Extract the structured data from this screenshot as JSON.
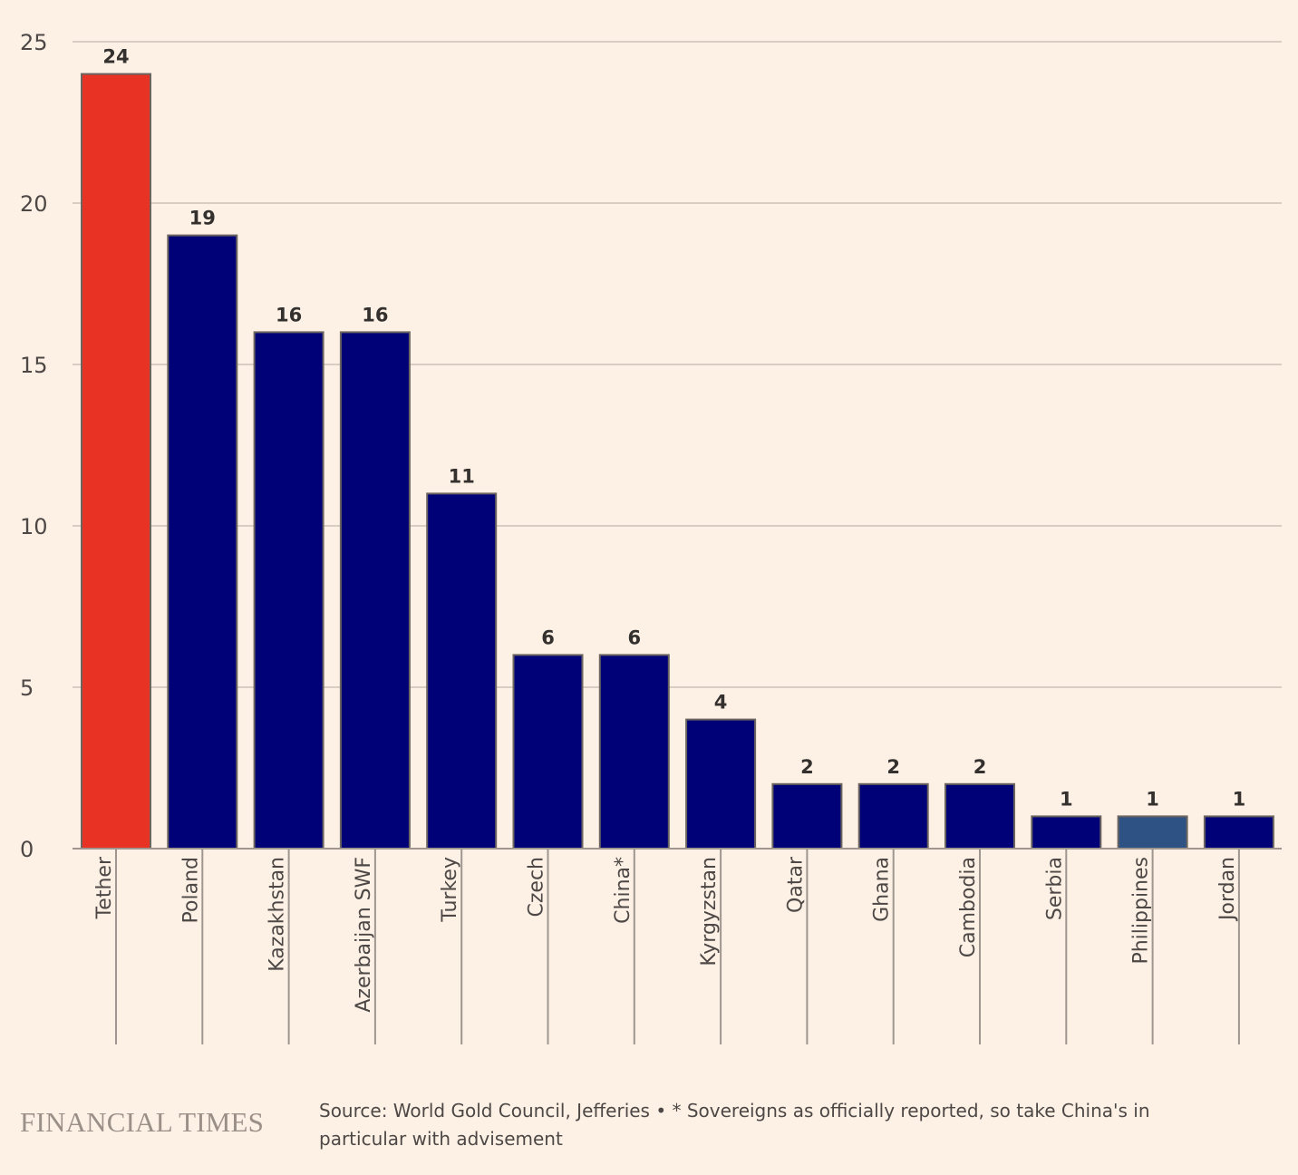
{
  "chart_data": {
    "type": "bar",
    "categories": [
      "Tether",
      "Poland",
      "Kazakhstan",
      "Azerbaijan SWF",
      "Turkey",
      "Czech",
      "China*",
      "Kyrgyzstan",
      "Qatar",
      "Ghana",
      "Cambodia",
      "Serbia",
      "Philippines",
      "Jordan"
    ],
    "values": [
      24,
      19,
      16,
      16,
      11,
      6,
      6,
      4,
      2,
      2,
      2,
      1,
      1,
      1
    ],
    "data_labels": [
      "24",
      "19",
      "16",
      "16",
      "11",
      "6",
      "6",
      "4",
      "2",
      "2",
      "2",
      "1",
      "1",
      "1"
    ],
    "bar_colors": [
      "#e83324",
      "#000077",
      "#000077",
      "#000077",
      "#000077",
      "#000077",
      "#000077",
      "#000077",
      "#000077",
      "#000077",
      "#000077",
      "#000077",
      "#2d5283",
      "#000077"
    ],
    "ylim": [
      0,
      25
    ],
    "yticks": [
      0,
      5,
      10,
      15,
      20,
      25
    ],
    "grid": true,
    "xlabel": "",
    "ylabel": ""
  },
  "footer": {
    "logo": "FINANCIAL TIMES",
    "source": "Source: World Gold Council, Jefferies • * Sovereigns as officially reported, so take China's in particular with advisement"
  },
  "colors": {
    "background": "#fdf1e6",
    "grid": "#ccc1b7",
    "axis": "#9e968f"
  }
}
